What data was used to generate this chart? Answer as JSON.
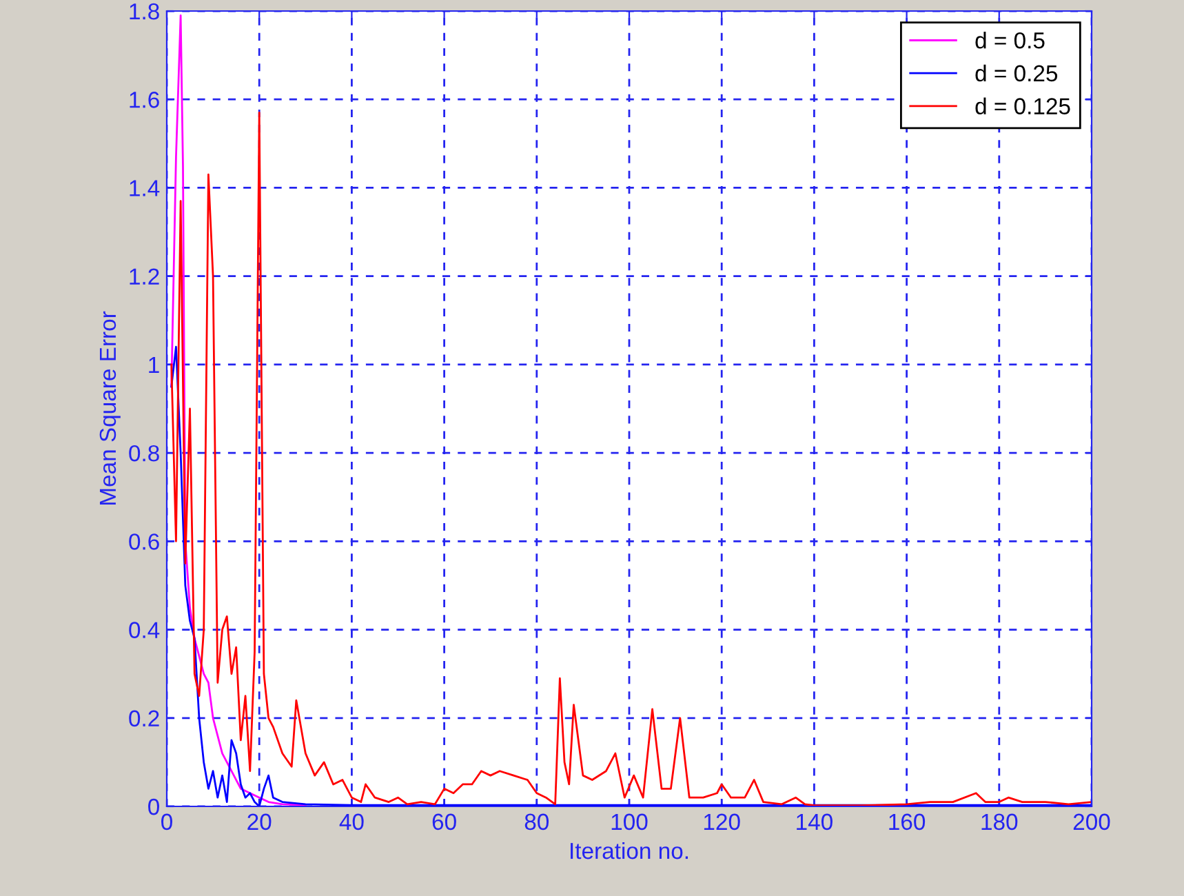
{
  "chart_data": {
    "type": "line",
    "xlabel": "Iteration no.",
    "ylabel": "Mean Square Error",
    "xlim": [
      0,
      200
    ],
    "ylim": [
      0,
      1.8
    ],
    "xticks": [
      0,
      20,
      40,
      60,
      80,
      100,
      120,
      140,
      160,
      180,
      200
    ],
    "yticks": [
      0,
      0.2,
      0.4,
      0.6,
      0.8,
      1,
      1.2,
      1.4,
      1.6,
      1.8
    ],
    "grid": true,
    "legend": "top right",
    "line_style": "solid",
    "series": [
      {
        "name": "d = 0.5",
        "color": "#ff00ff",
        "x": [
          1,
          2,
          3,
          3.5,
          4,
          5,
          6,
          8,
          9,
          10,
          12,
          14,
          16,
          18,
          20,
          22,
          25,
          30
        ],
        "values": [
          0.95,
          1.47,
          1.79,
          1.45,
          0.6,
          0.45,
          0.38,
          0.3,
          0.28,
          0.2,
          0.12,
          0.08,
          0.04,
          0.03,
          0.02,
          0.01,
          0.005,
          0.003
        ]
      },
      {
        "name": "d = 0.25",
        "color": "#0000ff",
        "x": [
          1,
          2,
          3,
          4,
          5,
          6,
          7,
          8,
          9,
          10,
          11,
          12,
          13,
          14,
          15,
          16,
          17,
          18,
          19,
          20,
          21,
          22,
          23,
          25,
          30,
          40,
          60,
          100,
          150,
          200
        ],
        "values": [
          0.95,
          1.04,
          0.8,
          0.5,
          0.42,
          0.38,
          0.2,
          0.1,
          0.04,
          0.08,
          0.02,
          0.07,
          0.01,
          0.15,
          0.12,
          0.05,
          0.02,
          0.03,
          0.01,
          0.0,
          0.04,
          0.07,
          0.02,
          0.01,
          0.005,
          0.003,
          0.003,
          0.003,
          0.003,
          0.003
        ]
      },
      {
        "name": "d = 0.125",
        "color": "#ff0000",
        "x": [
          1,
          2,
          3,
          4,
          5,
          6,
          7,
          8,
          9,
          10,
          11,
          12,
          13,
          14,
          15,
          16,
          17,
          18,
          19,
          20,
          21,
          22,
          23,
          25,
          27,
          28,
          30,
          32,
          34,
          36,
          38,
          40,
          42,
          43,
          45,
          48,
          50,
          52,
          55,
          58,
          60,
          62,
          64,
          66,
          68,
          70,
          72,
          75,
          78,
          80,
          82,
          84,
          85,
          86,
          87,
          88,
          90,
          92,
          95,
          97,
          99,
          101,
          103,
          105,
          107,
          109,
          111,
          113,
          116,
          119,
          120,
          122,
          125,
          127,
          129,
          133,
          136,
          138,
          140,
          150,
          160,
          165,
          170,
          175,
          177,
          180,
          182,
          185,
          190,
          195,
          200
        ],
        "values": [
          1.0,
          0.6,
          1.37,
          0.55,
          0.9,
          0.3,
          0.25,
          0.4,
          1.43,
          1.2,
          0.28,
          0.4,
          0.43,
          0.3,
          0.36,
          0.15,
          0.25,
          0.08,
          0.35,
          1.57,
          0.3,
          0.2,
          0.18,
          0.12,
          0.09,
          0.24,
          0.12,
          0.07,
          0.1,
          0.05,
          0.06,
          0.02,
          0.01,
          0.05,
          0.02,
          0.01,
          0.02,
          0.005,
          0.01,
          0.005,
          0.04,
          0.03,
          0.05,
          0.05,
          0.08,
          0.07,
          0.08,
          0.07,
          0.06,
          0.03,
          0.02,
          0.005,
          0.29,
          0.1,
          0.05,
          0.23,
          0.07,
          0.06,
          0.08,
          0.12,
          0.02,
          0.07,
          0.02,
          0.22,
          0.04,
          0.04,
          0.2,
          0.02,
          0.02,
          0.03,
          0.05,
          0.02,
          0.02,
          0.06,
          0.01,
          0.005,
          0.02,
          0.005,
          0.002,
          0.002,
          0.005,
          0.01,
          0.01,
          0.03,
          0.01,
          0.01,
          0.02,
          0.01,
          0.01,
          0.005,
          0.01
        ]
      }
    ]
  }
}
